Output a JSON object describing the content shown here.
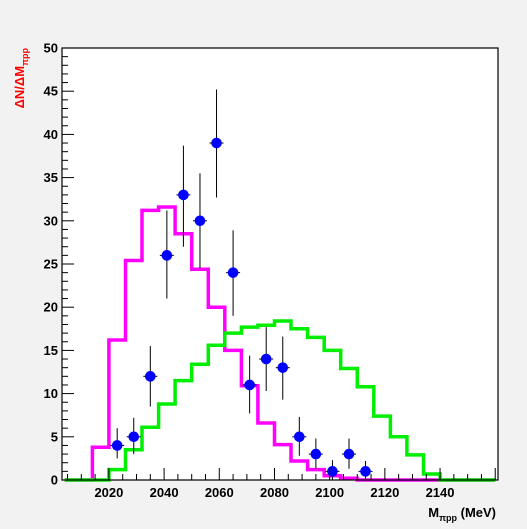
{
  "chart_data": {
    "type": "line",
    "title": "",
    "xlabel": "Mπpp (MeV)",
    "xlabel_parts": {
      "main": "M",
      "sub": "πpp",
      "tail": " (MeV)"
    },
    "ylabel": "ΔN/ΔMπpp",
    "ylabel_parts": {
      "main": "ΔN/ΔM",
      "sub": "πpp"
    },
    "xlim": [
      2003,
      2161
    ],
    "ylim": [
      0,
      50
    ],
    "x_ticks": [
      2020,
      2040,
      2060,
      2080,
      2100,
      2120,
      2140
    ],
    "y_ticks": [
      0,
      5,
      10,
      15,
      20,
      25,
      30,
      35,
      40,
      45,
      50
    ],
    "grid": false,
    "colors": {
      "magenta": "#ff00ff",
      "green": "#00ee00",
      "points": "#0000ff",
      "ylabel": "#ff0000"
    },
    "series": [
      {
        "style": "histogram",
        "color": "#ff00ff",
        "edges": [
          2004,
          2014,
          2020,
          2026,
          2032,
          2038,
          2044,
          2050,
          2056,
          2062,
          2068,
          2074,
          2080,
          2086,
          2092,
          2098,
          2104,
          2110,
          2160
        ],
        "values": [
          0,
          3.8,
          16.2,
          25.4,
          31.2,
          31.6,
          28.5,
          24.4,
          20.0,
          15.0,
          10.9,
          6.6,
          4.1,
          2.2,
          1.2,
          0.5,
          0.2,
          0
        ]
      },
      {
        "style": "histogram",
        "color": "#00ee00",
        "edges": [
          2004,
          2020,
          2026,
          2032,
          2038,
          2044,
          2050,
          2056,
          2062,
          2068,
          2074,
          2080,
          2086,
          2092,
          2098,
          2104,
          2110,
          2116,
          2122,
          2128,
          2134,
          2140,
          2160
        ],
        "values": [
          0,
          1.2,
          3.5,
          6.1,
          8.8,
          11.5,
          13.4,
          15.6,
          17.0,
          17.7,
          17.9,
          18.4,
          17.5,
          16.5,
          15.0,
          12.9,
          10.8,
          7.4,
          5.0,
          2.9,
          0.7,
          0
        ]
      },
      {
        "style": "points",
        "color": "#0000ff",
        "x": [
          2023,
          2029,
          2035,
          2041,
          2047,
          2053,
          2059,
          2065,
          2071,
          2077,
          2083,
          2089,
          2095,
          2101,
          2107,
          2113
        ],
        "values": [
          4,
          5,
          12,
          26,
          33,
          30,
          39,
          24,
          11,
          14,
          13,
          5,
          3,
          1,
          3,
          1
        ],
        "err_low": [
          1.5,
          2,
          3.5,
          5,
          6,
          5.5,
          6.3,
          5,
          3.3,
          3.7,
          3.7,
          2.2,
          1.7,
          1,
          1.7,
          1
        ],
        "err_high": [
          2,
          2.2,
          3.5,
          5.2,
          5.7,
          5.5,
          6.2,
          4.9,
          3.4,
          3.7,
          3.6,
          2.3,
          1.8,
          1.3,
          1.8,
          1.2
        ]
      }
    ]
  }
}
